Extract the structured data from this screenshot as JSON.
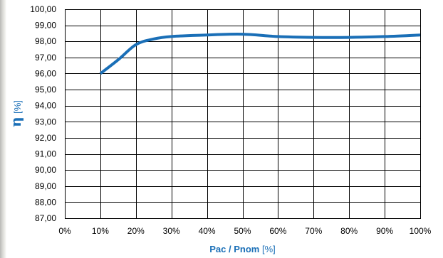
{
  "chart_data": {
    "type": "line",
    "title": "",
    "xlabel": "Pac / Pnom [%]",
    "xlabel_name": "Pac / Pnom",
    "xlabel_unit": "[%]",
    "ylabel": "η [%]",
    "ylabel_symbol": "η",
    "ylabel_unit": "[%]",
    "xlim": [
      0,
      100
    ],
    "ylim": [
      87,
      100
    ],
    "x_ticks": [
      "0%",
      "10%",
      "20%",
      "30%",
      "40%",
      "50%",
      "60%",
      "70%",
      "80%",
      "90%",
      "100%"
    ],
    "y_ticks": [
      "100,00",
      "99,00",
      "98,00",
      "97,00",
      "96,00",
      "95,00",
      "94,00",
      "93,00",
      "92,00",
      "91,00",
      "90,00",
      "89,00",
      "88,00",
      "87,00"
    ],
    "grid": true,
    "legend": "none",
    "series": [
      {
        "color": "#1a6fb7",
        "x": [
          10,
          15,
          20,
          25,
          30,
          40,
          50,
          60,
          70,
          80,
          90,
          100
        ],
        "values": [
          96.0,
          96.85,
          97.8,
          98.15,
          98.3,
          98.4,
          98.45,
          98.3,
          98.25,
          98.25,
          98.3,
          98.4
        ]
      }
    ]
  }
}
